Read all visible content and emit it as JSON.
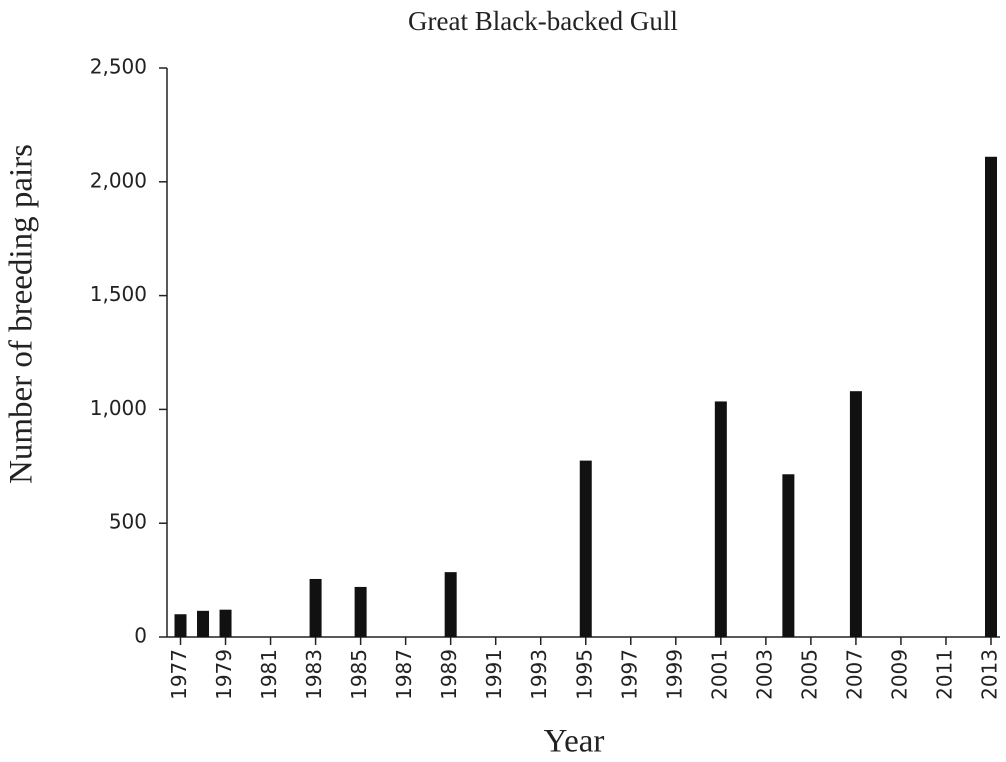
{
  "chart_data": {
    "type": "bar",
    "title": "Great Black-backed Gull",
    "x_label": "Year",
    "y_label": "Number of breeding pairs",
    "x": [
      1977,
      1978,
      1979,
      1983,
      1985,
      1989,
      1995,
      2001,
      2004,
      2007,
      2013
    ],
    "values": [
      100,
      115,
      120,
      255,
      220,
      285,
      775,
      1035,
      715,
      1080,
      2110
    ],
    "color": "#111111",
    "xlim": [
      1976.4,
      2013.4
    ],
    "xticks": [
      1977,
      1979,
      1981,
      1983,
      1985,
      1987,
      1989,
      1991,
      1993,
      1995,
      1997,
      1999,
      2001,
      2003,
      2005,
      2007,
      2009,
      2011,
      2013
    ],
    "ylim": [
      0,
      2500
    ],
    "yticks": [
      0,
      500,
      {
        "value": 1000,
        "label": "1,000"
      },
      {
        "value": 1500,
        "label": "1,500"
      },
      {
        "value": 2000,
        "label": "2,000"
      },
      {
        "value": 2500,
        "label": "2,500"
      }
    ],
    "grid": false
  }
}
